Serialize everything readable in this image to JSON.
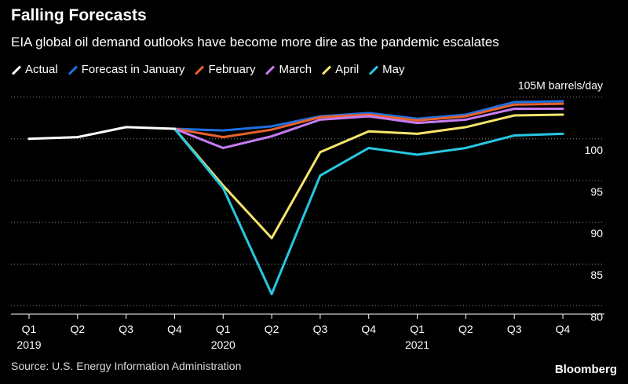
{
  "header": {
    "title": "Falling Forecasts",
    "subtitle": "EIA global oil demand outlooks have become more dire as the pandemic escalates"
  },
  "footer": {
    "source": "Source: U.S. Energy Information Administration",
    "brand": "Bloomberg"
  },
  "chart_data": {
    "type": "line",
    "title": "Falling Forecasts",
    "subtitle": "EIA global oil demand outlooks have become more dire as the pandemic escalates",
    "ylabel": "105M barrels/day",
    "unit_label": "105M barrels/day",
    "ylim": [
      79,
      106
    ],
    "yticks": [
      80,
      85,
      90,
      95,
      100,
      105
    ],
    "ytick_labels": [
      "80",
      "85",
      "90",
      "95",
      "100",
      ""
    ],
    "categories": [
      "Q1",
      "Q2",
      "Q3",
      "Q4",
      "Q1",
      "Q2",
      "Q3",
      "Q4",
      "Q1",
      "Q2",
      "Q3",
      "Q4"
    ],
    "year_labels": [
      {
        "index": 0,
        "label": "2019"
      },
      {
        "index": 4,
        "label": "2020"
      },
      {
        "index": 8,
        "label": "2021"
      }
    ],
    "grid": true,
    "legend_position": "top-left",
    "series": [
      {
        "name": "Actual",
        "color": "#ffffff",
        "values": [
          100.0,
          100.2,
          101.4,
          101.2,
          null,
          null,
          null,
          null,
          null,
          null,
          null,
          null
        ]
      },
      {
        "name": "Forecast in January",
        "color": "#1f6fe0",
        "values": [
          null,
          null,
          null,
          101.2,
          101.0,
          101.5,
          102.7,
          103.1,
          102.4,
          102.9,
          104.4,
          104.5
        ]
      },
      {
        "name": "February",
        "color": "#e8612c",
        "values": [
          null,
          null,
          null,
          101.2,
          100.2,
          101.1,
          102.6,
          102.9,
          102.2,
          102.7,
          104.1,
          104.2
        ]
      },
      {
        "name": "March",
        "color": "#c77cf2",
        "values": [
          null,
          null,
          null,
          101.2,
          98.9,
          100.3,
          102.3,
          102.7,
          101.9,
          102.3,
          103.6,
          103.6
        ]
      },
      {
        "name": "April",
        "color": "#f5e56b",
        "values": [
          null,
          null,
          null,
          101.2,
          94.4,
          88.1,
          98.4,
          100.9,
          100.6,
          101.4,
          102.8,
          102.9
        ]
      },
      {
        "name": "May",
        "color": "#27c8e0",
        "values": [
          null,
          null,
          null,
          101.2,
          94.1,
          81.4,
          95.6,
          98.9,
          98.1,
          98.9,
          100.4,
          100.6
        ]
      }
    ]
  }
}
